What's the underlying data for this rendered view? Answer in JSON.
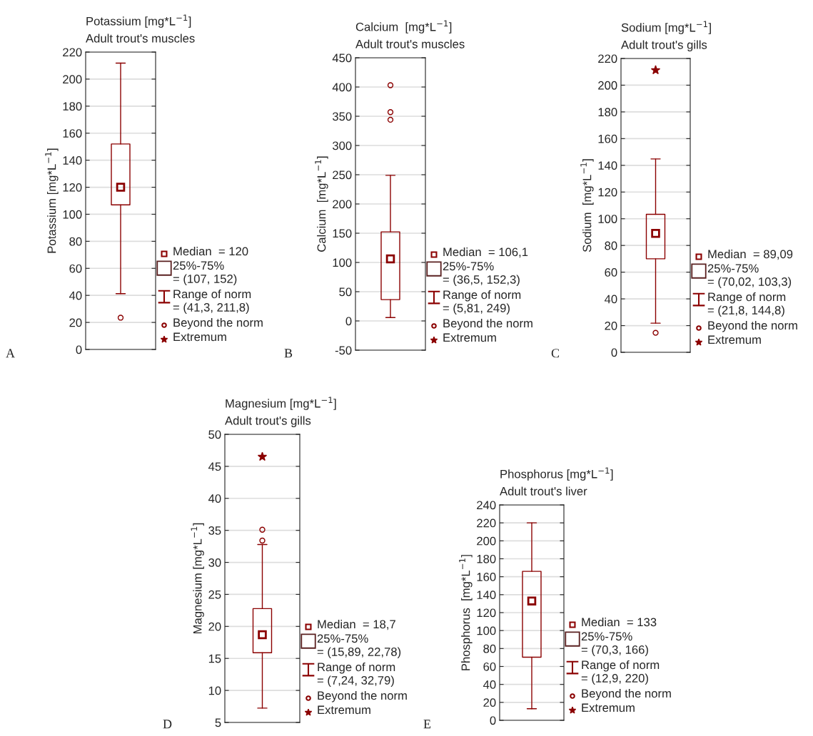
{
  "chart_data": [
    {
      "type": "box",
      "title": "Potassium [mg*L$^{−1}$]",
      "subtitle": "Adult trout's muscles",
      "ylabel": "Potassium [mg*L$^{−1}$]",
      "categories": [
        null
      ],
      "color": "#8b0000",
      "boxes": [
        {
          "low": 41.3,
          "q1": 107,
          "median": 120,
          "q3": 152,
          "high": 211.8,
          "outliers": [
            23.5
          ]
        }
      ],
      "ylim": [
        0,
        220
      ],
      "yticks": [
        0,
        20,
        40,
        60,
        80,
        100,
        120,
        140,
        160,
        180,
        200,
        220
      ],
      "grid": "y",
      "annotations": [
        "A",
        "Median  = 120",
        "25%-75%\n= (107, 152)",
        "Range of norm\n= (41,3, 211,8)",
        "Beyond the norm",
        "Extremum"
      ]
    },
    {
      "type": "box",
      "title": "Calcium  [mg*L$^{−1}$]",
      "subtitle": "Adult trout's muscles",
      "ylabel": "Calcium  [mg*L$^{−1}$]",
      "categories": [
        null
      ],
      "color": "#8b0000",
      "boxes": [
        {
          "low": 5.81,
          "q1": 36.5,
          "median": 106.1,
          "q3": 152.3,
          "high": 249,
          "outliers": [
            344,
            357,
            403
          ]
        }
      ],
      "ylim": [
        -50,
        450
      ],
      "yticks": [
        -50,
        0,
        50,
        100,
        150,
        200,
        250,
        300,
        350,
        400,
        450
      ],
      "grid": "y",
      "annotations": [
        "B",
        "Median  = 106,1",
        "25%-75%\n= (36,5, 152,3)",
        "Range of norm\n= (5,81, 249)",
        "Beyond the norm",
        "Extremum"
      ]
    },
    {
      "type": "box",
      "title": "Sodium [mg*L$^{−1}$]",
      "subtitle": "Adult trout's gills",
      "ylabel": "Sodium  [mg*L$^{−1}$]",
      "categories": [
        null
      ],
      "color": "#8b0000",
      "boxes": [
        {
          "low": 21.8,
          "q1": 70.02,
          "median": 89.09,
          "q3": 103.3,
          "high": 144.8,
          "outliers": [
            14.6
          ]
        }
      ],
      "series": [
        {
          "type": "scatter",
          "marker": "star",
          "color": "#8b0000",
          "values": [
            211.3
          ]
        }
      ],
      "ylim": [
        0,
        220
      ],
      "yticks": [
        0,
        20,
        40,
        60,
        80,
        100,
        120,
        140,
        160,
        180,
        200,
        220
      ],
      "grid": "y",
      "annotations": [
        "C",
        "Median  = 89,09",
        "25%-75%\n= (70,02, 103,3)",
        "Range of norm\n= (21,8, 144,8)",
        "Beyond the norm",
        "Extremum"
      ]
    },
    {
      "type": "box",
      "title": "Magnesium [mg*L$^{−1}$]",
      "subtitle": "Adult trout's gills",
      "ylabel": "Magnesium [mg*L$^{−1}$]",
      "categories": [
        null
      ],
      "color": "#8b0000",
      "boxes": [
        {
          "low": 7.24,
          "q1": 15.89,
          "median": 18.7,
          "q3": 22.78,
          "high": 32.79,
          "outliers": [
            33.4,
            35.1
          ]
        }
      ],
      "series": [
        {
          "type": "scatter",
          "marker": "star",
          "color": "#8b0000",
          "values": [
            46.5
          ]
        }
      ],
      "ylim": [
        5,
        50
      ],
      "yticks": [
        5,
        10,
        15,
        20,
        25,
        30,
        35,
        40,
        45,
        50
      ],
      "grid": "y",
      "annotations": [
        "D",
        "Median  = 18,7",
        "25%-75%\n= (15,89, 22,78)",
        "Range of norm\n= (7,24, 32,79)",
        "Beyond the norm",
        "Extremum"
      ]
    },
    {
      "type": "box",
      "title": "Phosphorus [mg*L$^{−1}$]",
      "subtitle": "Adult trout's liver",
      "ylabel": "Phosphorus  [mg*L$^{−1}$]",
      "categories": [
        null
      ],
      "color": "#8b0000",
      "boxes": [
        {
          "low": 12.9,
          "q1": 70.3,
          "median": 133,
          "q3": 166,
          "high": 220
        }
      ],
      "ylim": [
        0,
        240
      ],
      "yticks": [
        0,
        20,
        40,
        60,
        80,
        100,
        120,
        140,
        160,
        180,
        200,
        220,
        240
      ],
      "grid": "y",
      "annotations": [
        "E",
        "Median  = 133",
        "25%-75%\n= (70,3, 166)",
        "Range of norm\n= (12,9, 220)",
        "Beyond the norm",
        "Extremum"
      ]
    }
  ]
}
